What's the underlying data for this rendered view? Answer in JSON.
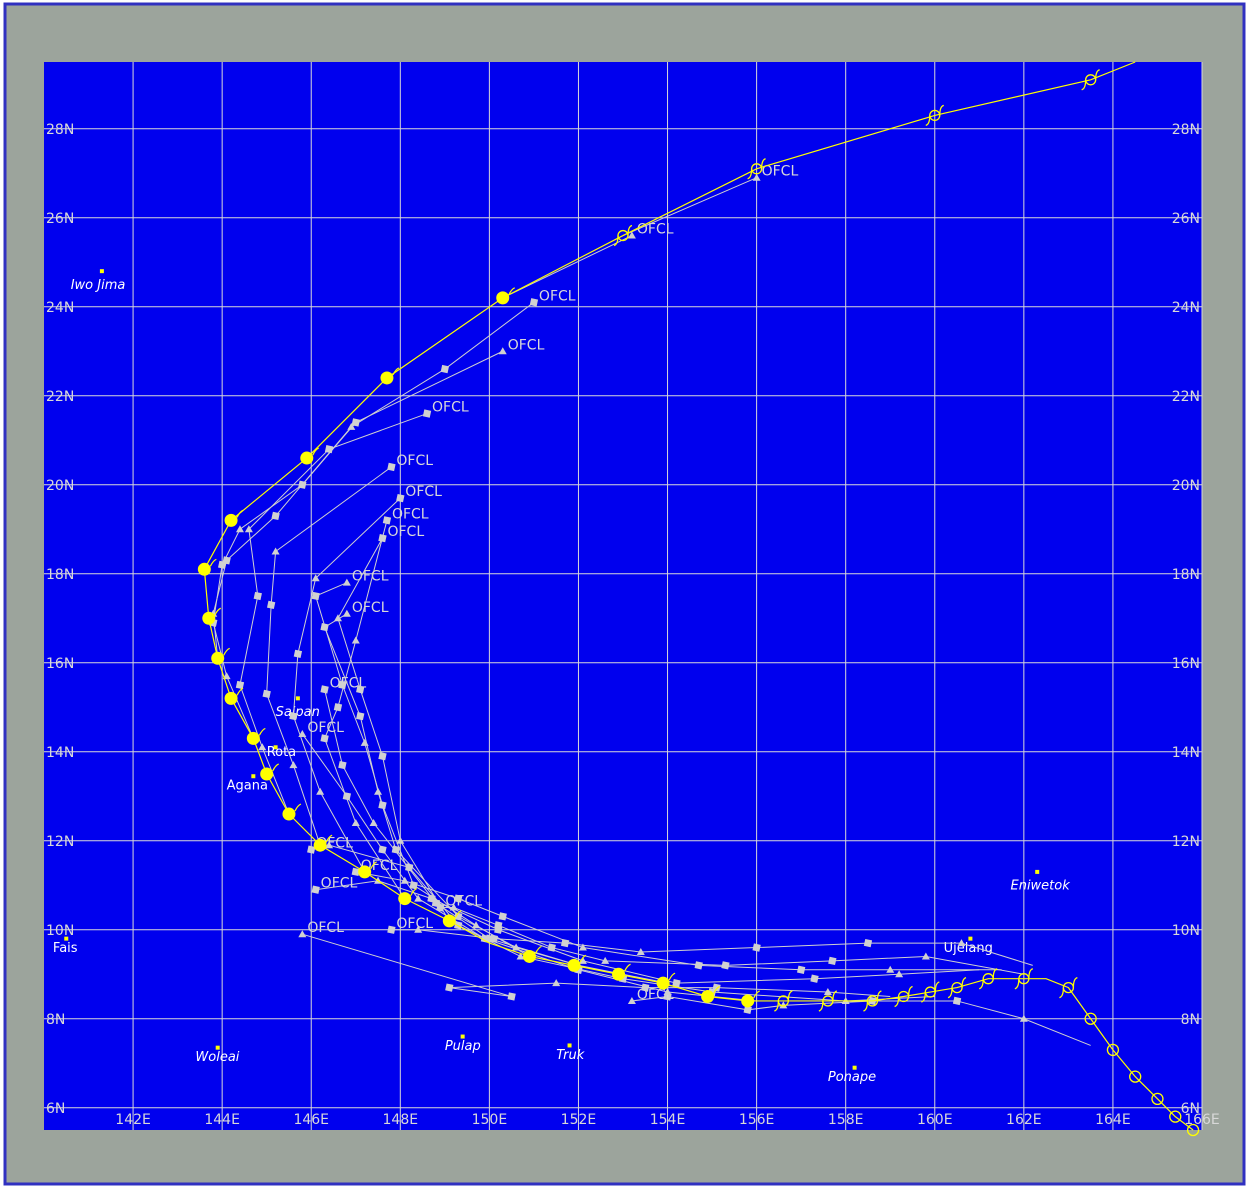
{
  "colors": {
    "frame_border": "#3030c0",
    "frame_fill": "#9ca49c",
    "ocean": "#0000ee",
    "grid": "#d8d8d8",
    "axis_text": "#d8d8d8",
    "best_track": "#ffff00",
    "forecast": "#d0d0d0",
    "island_label": "#ffffff",
    "island_marker": "#ffff00"
  },
  "map": {
    "lon_range": [
      140.0,
      166.0
    ],
    "lat_range": [
      5.5,
      29.5
    ],
    "lon_ticks": [
      {
        "v": 142,
        "label": "142E"
      },
      {
        "v": 144,
        "label": "144E"
      },
      {
        "v": 146,
        "label": "146E"
      },
      {
        "v": 148,
        "label": "148E"
      },
      {
        "v": 150,
        "label": "150E"
      },
      {
        "v": 152,
        "label": "152E"
      },
      {
        "v": 154,
        "label": "154E"
      },
      {
        "v": 156,
        "label": "156E"
      },
      {
        "v": 158,
        "label": "158E"
      },
      {
        "v": 160,
        "label": "160E"
      },
      {
        "v": 162,
        "label": "162E"
      },
      {
        "v": 164,
        "label": "164E"
      },
      {
        "v": 166,
        "label": "166E"
      }
    ],
    "lat_ticks": [
      {
        "v": 6,
        "label": "6N"
      },
      {
        "v": 8,
        "label": "8N"
      },
      {
        "v": 10,
        "label": "10N"
      },
      {
        "v": 12,
        "label": "12N"
      },
      {
        "v": 14,
        "label": "14N"
      },
      {
        "v": 16,
        "label": "16N"
      },
      {
        "v": 18,
        "label": "18N"
      },
      {
        "v": 20,
        "label": "20N"
      },
      {
        "v": 22,
        "label": "22N"
      },
      {
        "v": 24,
        "label": "24N"
      },
      {
        "v": 26,
        "label": "26N"
      },
      {
        "v": 28,
        "label": "28N"
      }
    ],
    "places": [
      {
        "name": "Iwo Jima",
        "lon": 141.3,
        "lat": 24.8,
        "dlon": -0.7,
        "dlat": -0.4,
        "italic": true
      },
      {
        "name": "Saipan",
        "lon": 145.7,
        "lat": 15.2,
        "dlon": -0.5,
        "dlat": -0.4,
        "italic": true
      },
      {
        "name": "Rota",
        "lon": 145.2,
        "lat": 14.1,
        "dlon": -0.2,
        "dlat": -0.2,
        "italic": false
      },
      {
        "name": "Agana",
        "lon": 144.7,
        "lat": 13.45,
        "dlon": -0.6,
        "dlat": -0.3,
        "italic": false
      },
      {
        "name": "Fais",
        "lon": 140.5,
        "lat": 9.8,
        "dlon": -0.3,
        "dlat": -0.3,
        "italic": false
      },
      {
        "name": "Woleai",
        "lon": 143.9,
        "lat": 7.35,
        "dlon": -0.5,
        "dlat": -0.3,
        "italic": true
      },
      {
        "name": "Pulap",
        "lon": 149.4,
        "lat": 7.6,
        "dlon": -0.4,
        "dlat": -0.3,
        "italic": true
      },
      {
        "name": "Truk",
        "lon": 151.8,
        "lat": 7.4,
        "dlon": -0.3,
        "dlat": -0.3,
        "italic": true
      },
      {
        "name": "Ponape",
        "lon": 158.2,
        "lat": 6.9,
        "dlon": -0.6,
        "dlat": -0.3,
        "italic": true
      },
      {
        "name": "Ujelang",
        "lon": 160.8,
        "lat": 9.8,
        "dlon": -0.6,
        "dlat": -0.3,
        "italic": false
      },
      {
        "name": "Eniwetok",
        "lon": 162.3,
        "lat": 11.3,
        "dlon": -0.6,
        "dlat": -0.4,
        "italic": true
      }
    ],
    "best_track": [
      [
        165.8,
        5.5
      ],
      [
        165.4,
        5.8
      ],
      [
        165.0,
        6.2
      ],
      [
        164.5,
        6.7
      ],
      [
        164.0,
        7.3
      ],
      [
        163.5,
        8.0
      ],
      [
        163.0,
        8.7
      ],
      [
        162.5,
        8.9
      ],
      [
        162.0,
        8.9
      ],
      [
        161.2,
        8.9
      ],
      [
        160.5,
        8.7
      ],
      [
        159.9,
        8.6
      ],
      [
        159.3,
        8.5
      ],
      [
        158.6,
        8.4
      ],
      [
        158.0,
        8.4
      ],
      [
        157.3,
        8.4
      ],
      [
        156.6,
        8.4
      ],
      [
        155.8,
        8.4
      ],
      [
        154.9,
        8.5
      ],
      [
        153.9,
        8.8
      ],
      [
        152.9,
        9.0
      ],
      [
        151.9,
        9.2
      ],
      [
        150.9,
        9.4
      ],
      [
        150.0,
        9.7
      ],
      [
        149.1,
        10.2
      ],
      [
        148.1,
        10.7
      ],
      [
        147.2,
        11.3
      ],
      [
        146.2,
        11.9
      ],
      [
        145.5,
        12.6
      ],
      [
        145.0,
        13.5
      ],
      [
        144.7,
        14.3
      ],
      [
        144.2,
        15.2
      ],
      [
        143.9,
        16.1
      ],
      [
        143.7,
        17.0
      ],
      [
        143.6,
        18.1
      ],
      [
        144.2,
        19.2
      ],
      [
        145.9,
        20.6
      ],
      [
        147.7,
        22.4
      ],
      [
        150.3,
        24.2
      ],
      [
        153.0,
        25.6
      ],
      [
        156.0,
        27.1
      ],
      [
        160.0,
        28.3
      ],
      [
        163.5,
        29.1
      ],
      [
        164.5,
        29.5
      ]
    ],
    "best_track_yellow_dots": [
      [
        155.8,
        8.4
      ],
      [
        154.9,
        8.5
      ],
      [
        153.9,
        8.8
      ],
      [
        152.9,
        9.0
      ],
      [
        151.9,
        9.2
      ],
      [
        150.9,
        9.4
      ],
      [
        149.1,
        10.2
      ],
      [
        148.1,
        10.7
      ],
      [
        147.2,
        11.3
      ],
      [
        146.2,
        11.9
      ],
      [
        145.5,
        12.6
      ],
      [
        145.0,
        13.5
      ],
      [
        144.7,
        14.3
      ],
      [
        144.2,
        15.2
      ],
      [
        143.9,
        16.1
      ],
      [
        143.7,
        17.0
      ],
      [
        143.6,
        18.1
      ],
      [
        144.2,
        19.2
      ],
      [
        145.9,
        20.6
      ],
      [
        147.7,
        22.4
      ],
      [
        150.3,
        24.2
      ]
    ],
    "best_track_storm_symbols": [
      [
        163.0,
        8.7
      ],
      [
        162.0,
        8.9
      ],
      [
        161.2,
        8.9
      ],
      [
        160.5,
        8.7
      ],
      [
        159.9,
        8.6
      ],
      [
        159.3,
        8.5
      ],
      [
        158.6,
        8.4
      ],
      [
        157.6,
        8.4
      ],
      [
        156.6,
        8.4
      ],
      [
        153.0,
        25.6
      ],
      [
        156.0,
        27.1
      ],
      [
        160.0,
        28.3
      ],
      [
        163.5,
        29.1
      ]
    ],
    "best_track_circles": [
      [
        163.5,
        8.0
      ],
      [
        164.0,
        7.3
      ],
      [
        164.5,
        6.7
      ],
      [
        165.0,
        6.2
      ],
      [
        165.4,
        5.8
      ],
      [
        165.8,
        5.5
      ]
    ],
    "forecast_tracks": [
      {
        "label": "OFCL",
        "pts": [
          [
            163.5,
            7.4
          ],
          [
            162.0,
            8.0
          ],
          [
            160.5,
            8.4
          ],
          [
            158.6,
            8.4
          ],
          [
            156.6,
            8.3
          ],
          [
            155.8,
            8.2
          ],
          [
            154.0,
            8.5
          ],
          [
            153.2,
            8.4
          ]
        ]
      },
      {
        "label": "OFCL",
        "pts": [
          [
            162.2,
            9.2
          ],
          [
            160.6,
            9.7
          ],
          [
            158.5,
            9.7
          ],
          [
            156.0,
            9.6
          ],
          [
            153.4,
            9.5
          ],
          [
            151.7,
            9.7
          ],
          [
            150.1,
            9.8
          ],
          [
            148.4,
            10.0
          ],
          [
            147.8,
            10.0
          ]
        ]
      },
      {
        "label": "OFCL",
        "pts": [
          [
            162.0,
            9.0
          ],
          [
            159.8,
            9.4
          ],
          [
            157.7,
            9.3
          ],
          [
            155.3,
            9.2
          ],
          [
            152.6,
            9.3
          ],
          [
            151.4,
            9.6
          ],
          [
            150.2,
            10.1
          ],
          [
            149.2,
            10.5
          ],
          [
            148.9,
            10.5
          ]
        ]
      },
      {
        "label": "OFCL",
        "pts": [
          [
            161.5,
            9.1
          ],
          [
            159.0,
            9.1
          ],
          [
            157.0,
            9.1
          ],
          [
            154.7,
            9.2
          ],
          [
            152.1,
            9.6
          ],
          [
            150.3,
            10.3
          ],
          [
            149.3,
            10.7
          ],
          [
            148.1,
            11.1
          ],
          [
            147.0,
            11.3
          ]
        ]
      },
      {
        "label": "OFCL",
        "pts": [
          [
            161.0,
            9.1
          ],
          [
            159.2,
            9.0
          ],
          [
            157.3,
            8.9
          ],
          [
            154.2,
            8.8
          ],
          [
            152.1,
            9.3
          ],
          [
            150.2,
            10.0
          ],
          [
            148.7,
            10.7
          ],
          [
            147.5,
            11.1
          ],
          [
            146.1,
            10.9
          ]
        ]
      },
      {
        "label": "OFCL",
        "pts": [
          [
            159.0,
            8.5
          ],
          [
            157.6,
            8.6
          ],
          [
            155.1,
            8.7
          ],
          [
            153.5,
            8.7
          ],
          [
            151.5,
            8.8
          ],
          [
            149.1,
            8.7
          ],
          [
            150.5,
            8.5
          ],
          [
            145.8,
            9.9
          ]
        ]
      },
      {
        "label": "OFCL",
        "pts": [
          [
            160.0,
            8.5
          ],
          [
            158.0,
            8.4
          ],
          [
            155.0,
            8.6
          ],
          [
            153.0,
            8.9
          ],
          [
            150.7,
            9.4
          ],
          [
            149.3,
            10.1
          ],
          [
            148.2,
            11.4
          ],
          [
            146.4,
            11.9
          ],
          [
            146.0,
            11.8
          ]
        ]
      },
      {
        "label": "OFCL",
        "pts": [
          [
            156.0,
            8.4
          ],
          [
            154.0,
            8.6
          ],
          [
            152.0,
            9.1
          ],
          [
            149.9,
            9.8
          ],
          [
            148.4,
            10.7
          ],
          [
            147.6,
            11.8
          ],
          [
            146.8,
            13.0
          ],
          [
            145.8,
            14.4
          ]
        ]
      },
      {
        "label": "OFCL",
        "pts": [
          [
            154.0,
            8.8
          ],
          [
            152.0,
            9.2
          ],
          [
            150.0,
            9.8
          ],
          [
            148.8,
            10.6
          ],
          [
            147.4,
            12.4
          ],
          [
            146.7,
            13.7
          ],
          [
            146.3,
            15.4
          ]
        ]
      },
      {
        "label": "OFCL",
        "pts": [
          [
            152.0,
            9.2
          ],
          [
            150.6,
            9.6
          ],
          [
            149.3,
            10.3
          ],
          [
            147.9,
            11.8
          ],
          [
            147.5,
            13.1
          ],
          [
            147.1,
            14.8
          ],
          [
            146.3,
            16.8
          ],
          [
            146.8,
            17.1
          ]
        ]
      },
      {
        "label": "OFCL",
        "pts": [
          [
            150.9,
            9.4
          ],
          [
            149.7,
            10.1
          ],
          [
            148.3,
            11.0
          ],
          [
            147.6,
            12.8
          ],
          [
            147.2,
            14.2
          ],
          [
            146.7,
            15.5
          ],
          [
            146.1,
            17.5
          ],
          [
            146.8,
            17.8
          ]
        ]
      },
      {
        "label": "OFCL",
        "pts": [
          [
            149.1,
            10.2
          ],
          [
            148.0,
            12.0
          ],
          [
            147.6,
            13.9
          ],
          [
            147.1,
            15.4
          ],
          [
            146.6,
            17.0
          ],
          [
            147.6,
            18.8
          ]
        ]
      },
      {
        "label": "OFCL",
        "pts": [
          [
            148.1,
            10.7
          ],
          [
            147.0,
            12.4
          ],
          [
            146.3,
            14.3
          ],
          [
            146.6,
            15.0
          ],
          [
            147.0,
            16.5
          ],
          [
            147.7,
            19.2
          ]
        ]
      },
      {
        "label": "OFCL",
        "pts": [
          [
            147.2,
            11.3
          ],
          [
            146.2,
            13.1
          ],
          [
            145.6,
            14.8
          ],
          [
            145.7,
            16.2
          ],
          [
            146.1,
            17.9
          ],
          [
            148.0,
            19.7
          ]
        ]
      },
      {
        "label": "OFCL",
        "pts": [
          [
            146.2,
            11.9
          ],
          [
            145.6,
            13.7
          ],
          [
            145.0,
            15.3
          ],
          [
            145.1,
            17.3
          ],
          [
            145.2,
            18.5
          ],
          [
            147.8,
            20.4
          ]
        ]
      },
      {
        "label": "OFCL",
        "pts": [
          [
            145.5,
            12.6
          ],
          [
            144.9,
            14.1
          ],
          [
            144.4,
            15.5
          ],
          [
            144.8,
            17.5
          ],
          [
            144.6,
            19.0
          ],
          [
            146.4,
            20.8
          ],
          [
            148.6,
            21.6
          ]
        ]
      },
      {
        "label": "OFCL",
        "pts": [
          [
            144.7,
            14.3
          ],
          [
            144.1,
            15.7
          ],
          [
            143.8,
            16.9
          ],
          [
            144.0,
            18.2
          ],
          [
            144.4,
            19.0
          ],
          [
            145.8,
            20.0
          ],
          [
            147.0,
            21.4
          ],
          [
            150.3,
            23.0
          ]
        ]
      },
      {
        "label": "OFCL",
        "pts": [
          [
            143.9,
            16.1
          ],
          [
            143.8,
            17.1
          ],
          [
            144.1,
            18.3
          ],
          [
            145.2,
            19.3
          ],
          [
            146.9,
            21.3
          ],
          [
            149.0,
            22.6
          ],
          [
            151.0,
            24.1
          ]
        ]
      },
      {
        "label": "OFCL",
        "pts": [
          [
            150.3,
            24.2
          ],
          [
            153.2,
            25.6
          ]
        ]
      },
      {
        "label": "OFCL",
        "pts": [
          [
            153.0,
            25.6
          ],
          [
            156.0,
            26.9
          ]
        ]
      }
    ]
  }
}
